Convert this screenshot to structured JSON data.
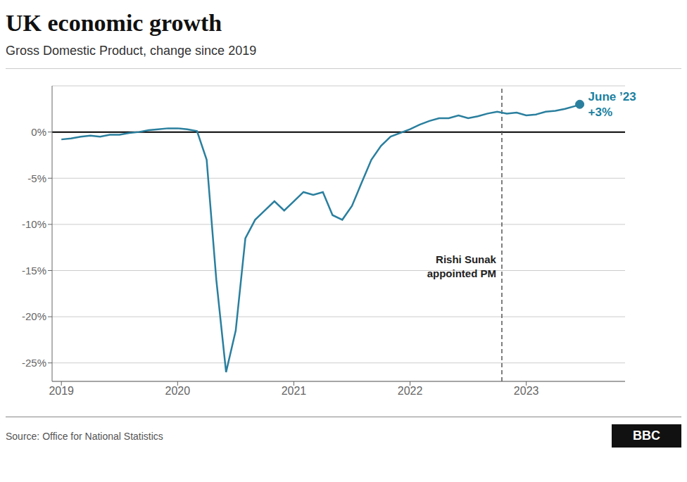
{
  "chart_data": {
    "type": "line",
    "title": "UK economic growth",
    "subtitle": "Gross Domestic Product, change since 2019",
    "source": "Source: Office for National Statistics",
    "logo": "BBC",
    "color": "#2a7f9e",
    "grid": true,
    "grid_color": "#cccccc",
    "xlim": [
      2018.92,
      2023.85
    ],
    "xticks": [
      2019,
      2020,
      2021,
      2022,
      2023
    ],
    "ylim": [
      -27,
      5
    ],
    "yticks": [
      {
        "value": 0,
        "label": "0%"
      },
      {
        "value": -5,
        "label": "-5%"
      },
      {
        "value": -10,
        "label": "-10%"
      },
      {
        "value": -15,
        "label": "-15%"
      },
      {
        "value": -20,
        "label": "-20%"
      },
      {
        "value": -25,
        "label": "-25%"
      }
    ],
    "reference_lines": [
      {
        "y": 0,
        "color": "#000000"
      },
      {
        "x": 2022.79,
        "color": "#555555",
        "line_style": "dashed"
      }
    ],
    "annotations": [
      {
        "x": 2022.79,
        "y": -14.5,
        "text": "Rishi Sunak\nappointed PM"
      },
      {
        "x": 2023.46,
        "y": 3.0,
        "text": "June ’23\n+3%",
        "color": "#1a7fa0",
        "marker": "dot"
      }
    ],
    "x": [
      2019.0,
      2019.083,
      2019.167,
      2019.25,
      2019.333,
      2019.417,
      2019.5,
      2019.583,
      2019.667,
      2019.75,
      2019.833,
      2019.917,
      2020.0,
      2020.083,
      2020.167,
      2020.25,
      2020.333,
      2020.417,
      2020.5,
      2020.583,
      2020.667,
      2020.75,
      2020.833,
      2020.917,
      2021.0,
      2021.083,
      2021.167,
      2021.25,
      2021.333,
      2021.417,
      2021.5,
      2021.583,
      2021.667,
      2021.75,
      2021.833,
      2021.917,
      2022.0,
      2022.083,
      2022.167,
      2022.25,
      2022.333,
      2022.417,
      2022.5,
      2022.583,
      2022.667,
      2022.75,
      2022.833,
      2022.917,
      2023.0,
      2023.083,
      2023.167,
      2023.25,
      2023.333,
      2023.417,
      2023.46
    ],
    "values": [
      -0.8,
      -0.7,
      -0.5,
      -0.4,
      -0.5,
      -0.3,
      -0.3,
      -0.1,
      0.0,
      0.2,
      0.3,
      0.4,
      0.4,
      0.3,
      0.1,
      -3.0,
      -16.0,
      -26.0,
      -21.5,
      -11.5,
      -9.5,
      -8.5,
      -7.5,
      -8.5,
      -7.5,
      -6.5,
      -6.8,
      -6.5,
      -9.0,
      -9.5,
      -8.0,
      -5.5,
      -3.0,
      -1.5,
      -0.5,
      -0.1,
      0.3,
      0.8,
      1.2,
      1.5,
      1.5,
      1.8,
      1.5,
      1.7,
      2.0,
      2.2,
      2.0,
      2.1,
      1.8,
      1.9,
      2.2,
      2.3,
      2.5,
      2.8,
      3.0
    ]
  }
}
